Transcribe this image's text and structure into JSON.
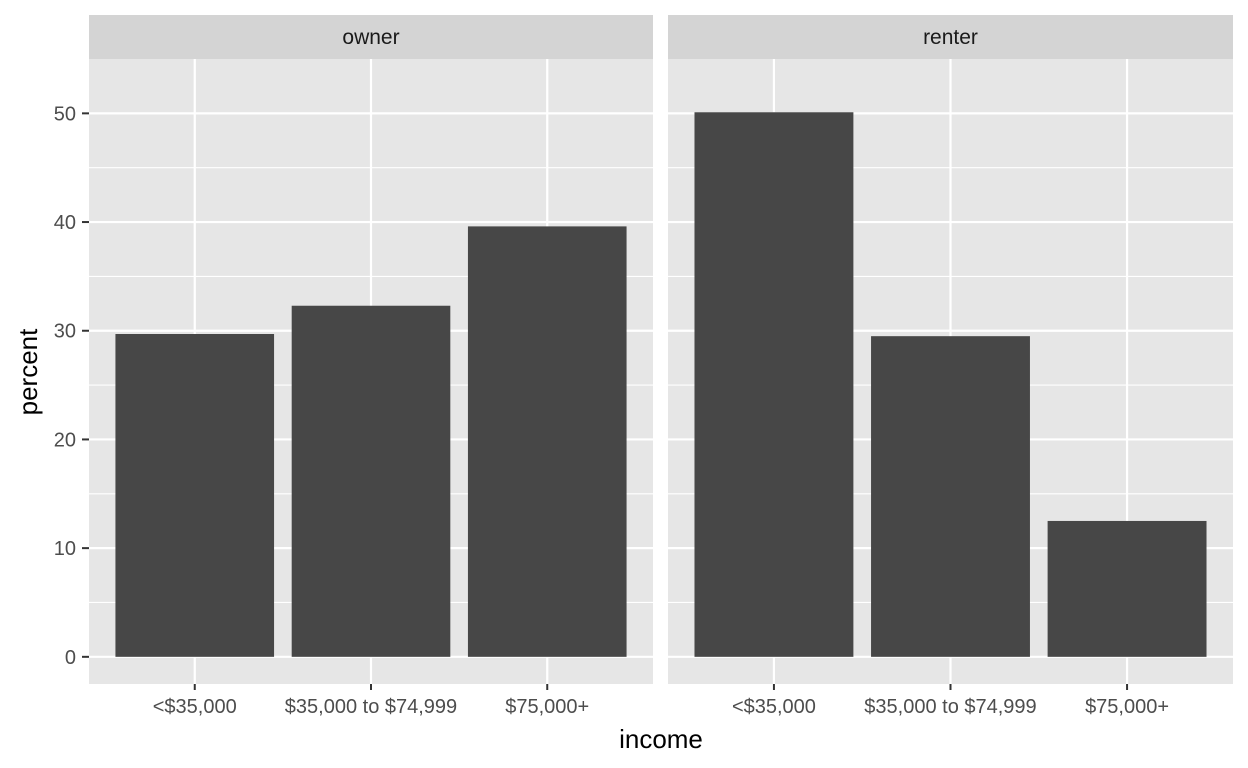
{
  "chart_data": {
    "type": "bar",
    "facet_layout": "side-by-side panels, one row",
    "xlabel": "income",
    "ylabel": "percent",
    "ylim": [
      -2.5,
      55
    ],
    "yticks": [
      0,
      10,
      20,
      30,
      40,
      50
    ],
    "grid": true,
    "legend": "none",
    "categories": [
      "<$35,000",
      "$35,000 to $74,999",
      "$75,000+"
    ],
    "panels": [
      {
        "label": "owner",
        "values": [
          29.7,
          32.3,
          39.6
        ]
      },
      {
        "label": "renter",
        "values": [
          50.1,
          29.5,
          12.5
        ]
      }
    ],
    "colors": {
      "bar": "#474747",
      "panel_background": "#e6e6e6",
      "strip_background": "#d4d4d4",
      "grid_line": "#ffffff",
      "tick": "#333333"
    }
  }
}
